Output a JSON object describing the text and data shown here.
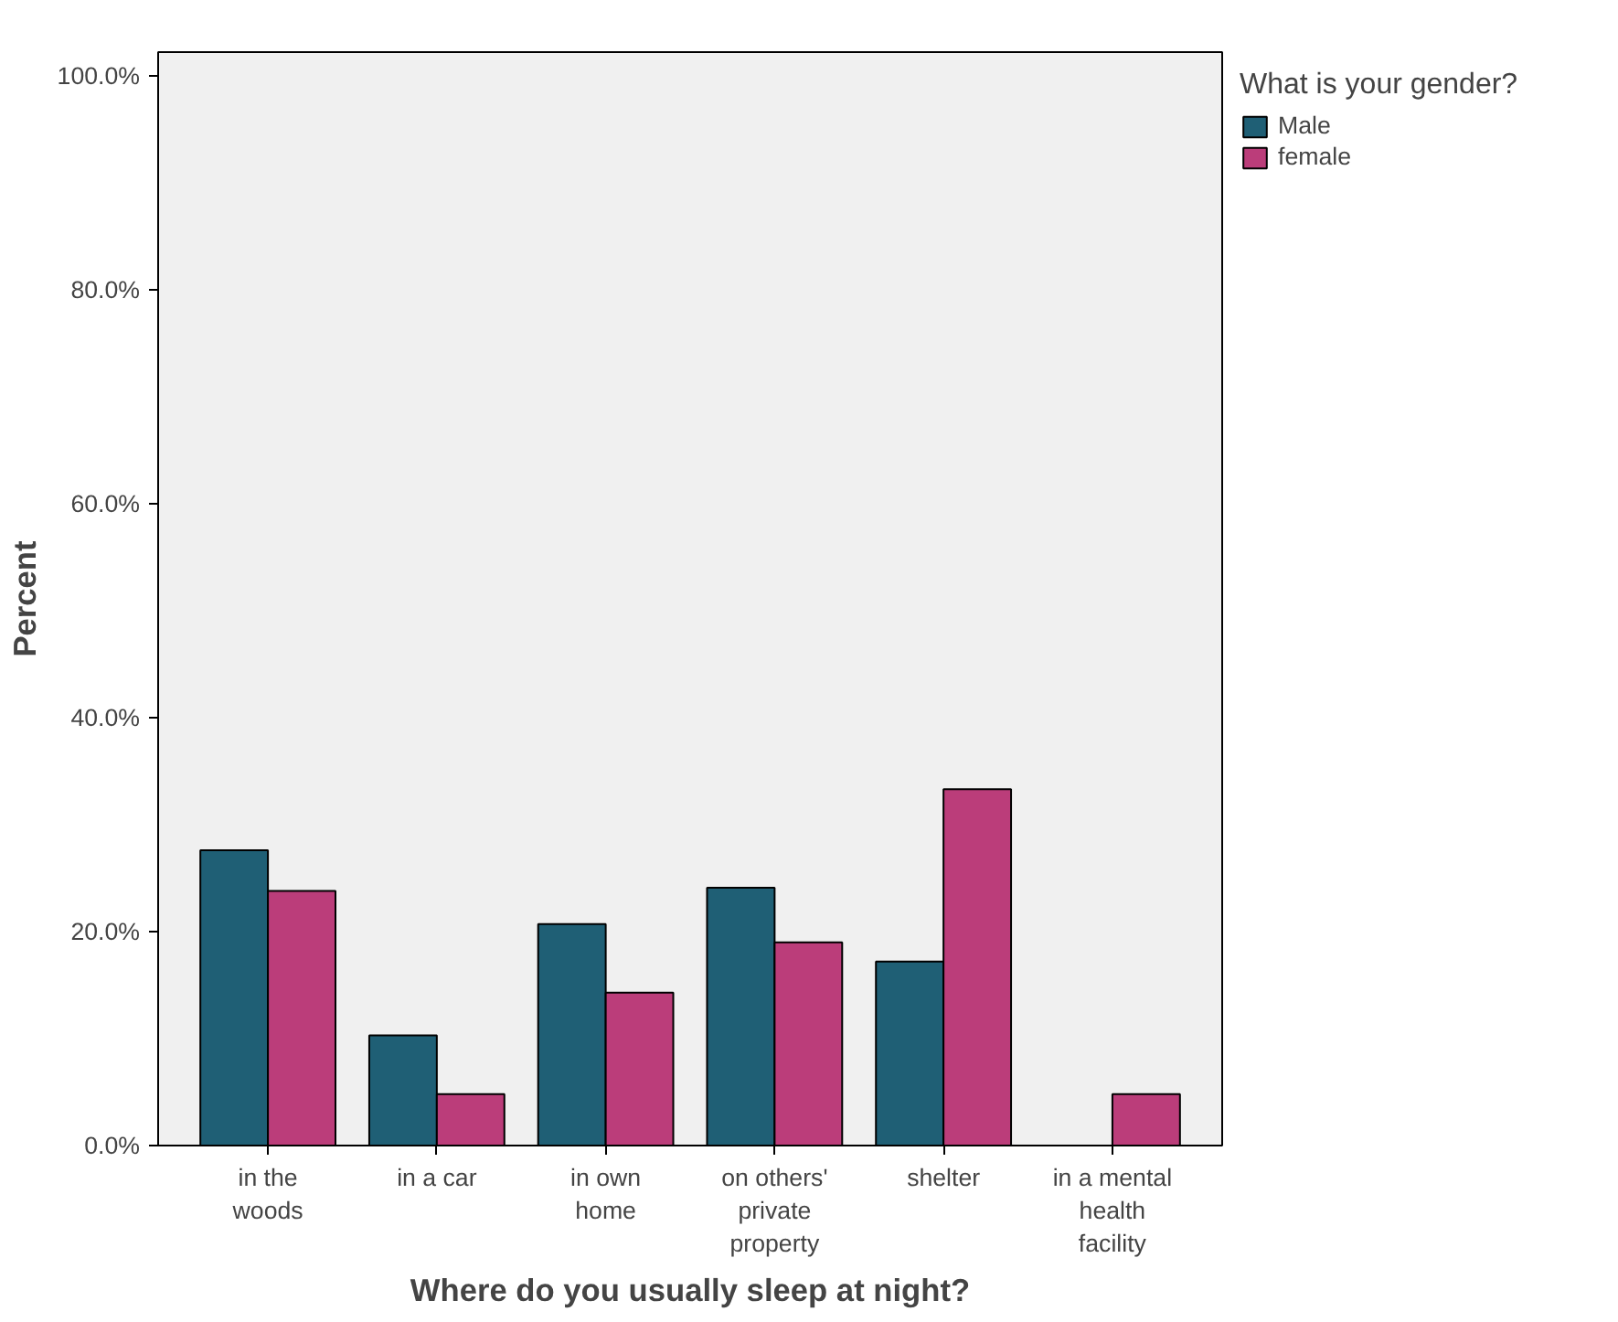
{
  "chart_data": {
    "type": "bar",
    "xlabel": "Where do you usually sleep at night?",
    "ylabel": "Percent",
    "legend_title": "What is your gender?",
    "legend": "top right",
    "categories": [
      "in the\nwoods",
      "in a car",
      "in own\nhome",
      "on others'\nprivate\nproperty",
      "shelter",
      "in a mental\nhealth\nfacility"
    ],
    "series": [
      {
        "name": "Male",
        "color": "#1f5f75",
        "values": [
          27.6,
          10.3,
          20.7,
          24.1,
          17.2,
          0.0
        ]
      },
      {
        "name": "female",
        "color": "#bb3d7a",
        "values": [
          23.8,
          4.8,
          14.3,
          19.0,
          33.3,
          4.8
        ]
      }
    ],
    "ylim": [
      0,
      102.2
    ],
    "yticks": [
      {
        "value": 0,
        "label": "0.0%"
      },
      {
        "value": 20,
        "label": "20.0%"
      },
      {
        "value": 40,
        "label": "40.0%"
      },
      {
        "value": 60,
        "label": "60.0%"
      },
      {
        "value": 80,
        "label": "80.0%"
      },
      {
        "value": 100,
        "label": "100.0%"
      }
    ],
    "grid": false
  }
}
